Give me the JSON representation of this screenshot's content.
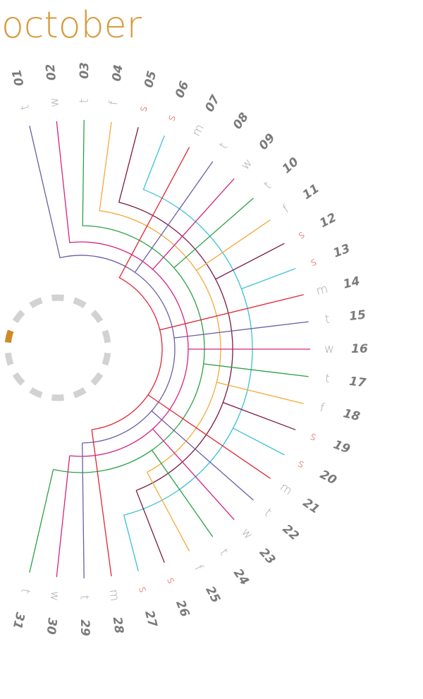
{
  "title": "october",
  "colors": {
    "title": "#d89a3c",
    "number": "#7a7a7a",
    "letter": "#a8a8a8",
    "weekend": "#d9443c",
    "indicator_ring": "#d2d2d2",
    "indicator_active": "#cf8a2a",
    "lines": [
      "#6a5ea6",
      "#d4237f",
      "#2aa043",
      "#f3a93a",
      "#7a1a45",
      "#39c0d8",
      "#e02633"
    ]
  },
  "week_indicator": {
    "segments": 14,
    "active_segment": 0
  },
  "days": [
    {
      "num": "01",
      "letter": "t"
    },
    {
      "num": "02",
      "letter": "w"
    },
    {
      "num": "03",
      "letter": "t"
    },
    {
      "num": "04",
      "letter": "f"
    },
    {
      "num": "05",
      "letter": "s",
      "weekend": true
    },
    {
      "num": "06",
      "letter": "s",
      "weekend": true
    },
    {
      "num": "07",
      "letter": "m"
    },
    {
      "num": "08",
      "letter": "t"
    },
    {
      "num": "09",
      "letter": "w"
    },
    {
      "num": "10",
      "letter": "t"
    },
    {
      "num": "11",
      "letter": "f"
    },
    {
      "num": "12",
      "letter": "s",
      "weekend": true
    },
    {
      "num": "13",
      "letter": "s",
      "weekend": true
    },
    {
      "num": "14",
      "letter": "m"
    },
    {
      "num": "15",
      "letter": "t"
    },
    {
      "num": "16",
      "letter": "w"
    },
    {
      "num": "17",
      "letter": "t"
    },
    {
      "num": "18",
      "letter": "f"
    },
    {
      "num": "19",
      "letter": "s",
      "weekend": true
    },
    {
      "num": "20",
      "letter": "s",
      "weekend": true
    },
    {
      "num": "21",
      "letter": "m"
    },
    {
      "num": "22",
      "letter": "t"
    },
    {
      "num": "23",
      "letter": "w"
    },
    {
      "num": "24",
      "letter": "t"
    },
    {
      "num": "25",
      "letter": "f"
    },
    {
      "num": "26",
      "letter": "s",
      "weekend": true
    },
    {
      "num": "27",
      "letter": "s",
      "weekend": true
    },
    {
      "num": "28",
      "letter": "m"
    },
    {
      "num": "29",
      "letter": "t"
    },
    {
      "num": "30",
      "letter": "w"
    },
    {
      "num": "31",
      "letter": "t"
    }
  ]
}
